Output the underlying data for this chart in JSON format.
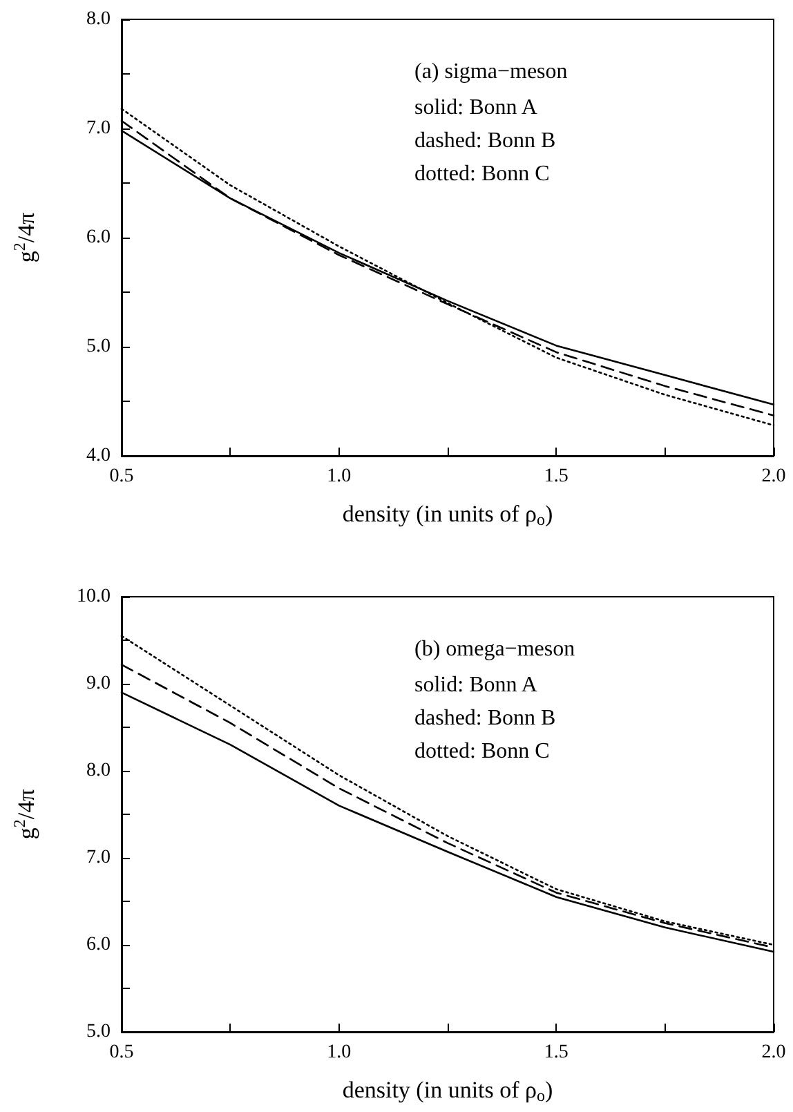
{
  "chart_data": [
    {
      "type": "line",
      "xlabel": "density (in units of ρ$_{o}$)",
      "ylabel": "g$^{2}$/4π",
      "annotations": [
        "(a) sigma−meson",
        "solid: Bonn A",
        "dashed: Bonn B",
        "dotted: Bonn C"
      ],
      "x": [
        0.5,
        0.75,
        1.0,
        1.25,
        1.5,
        1.75,
        2.0
      ],
      "series": [
        {
          "color": "#000000",
          "line_style": "solid",
          "values": [
            6.98,
            6.36,
            5.86,
            5.42,
            5.01,
            4.74,
            4.47
          ]
        },
        {
          "color": "#000000",
          "line_style": "dashed",
          "values": [
            7.07,
            6.36,
            5.84,
            5.39,
            4.95,
            4.64,
            4.37
          ]
        },
        {
          "color": "#000000",
          "line_style": "dotted",
          "values": [
            7.18,
            6.48,
            5.92,
            5.4,
            4.9,
            4.56,
            4.28
          ]
        }
      ],
      "xlim": [
        0.5,
        2.0
      ],
      "ylim": [
        4.0,
        8.0
      ],
      "xticks": [
        {
          "value": 0.5,
          "label": "0.5"
        },
        {
          "value": 0.75,
          "label": null
        },
        {
          "value": 1.0,
          "label": "1.0"
        },
        {
          "value": 1.25,
          "label": null
        },
        {
          "value": 1.5,
          "label": "1.5"
        },
        {
          "value": 1.75,
          "label": null
        },
        {
          "value": 2.0,
          "label": "2.0"
        }
      ],
      "yticks": [
        {
          "value": 4,
          "label": "4.0"
        },
        {
          "value": 4.5,
          "label": null
        },
        {
          "value": 5,
          "label": "5.0"
        },
        {
          "value": 5.5,
          "label": null
        },
        {
          "value": 6,
          "label": "6.0"
        },
        {
          "value": 6.5,
          "label": null
        },
        {
          "value": 7,
          "label": "7.0"
        },
        {
          "value": 7.5,
          "label": null
        },
        {
          "value": 8,
          "label": "8.0"
        }
      ],
      "grid": false,
      "marker": "none"
    },
    {
      "type": "line",
      "xlabel": "density (in units of ρ$_{o}$)",
      "ylabel": "g$^{2}$/4π",
      "annotations": [
        "(b) omega−meson",
        "solid: Bonn A",
        "dashed: Bonn B",
        "dotted: Bonn C"
      ],
      "x": [
        0.5,
        0.75,
        1.0,
        1.25,
        1.5,
        1.75,
        2.0
      ],
      "series": [
        {
          "color": "#000000",
          "line_style": "solid",
          "values": [
            8.9,
            8.3,
            7.6,
            7.07,
            6.55,
            6.2,
            5.92
          ]
        },
        {
          "color": "#000000",
          "line_style": "dashed",
          "values": [
            9.22,
            8.55,
            7.8,
            7.17,
            6.6,
            6.25,
            5.97
          ]
        },
        {
          "color": "#000000",
          "line_style": "dotted",
          "values": [
            9.55,
            8.75,
            7.95,
            7.25,
            6.64,
            6.27,
            6.0
          ]
        }
      ],
      "xlim": [
        0.5,
        2.0
      ],
      "ylim": [
        5.0,
        10.0
      ],
      "xticks": [
        {
          "value": 0.5,
          "label": "0.5"
        },
        {
          "value": 0.75,
          "label": null
        },
        {
          "value": 1.0,
          "label": "1.0"
        },
        {
          "value": 1.25,
          "label": null
        },
        {
          "value": 1.5,
          "label": "1.5"
        },
        {
          "value": 1.75,
          "label": null
        },
        {
          "value": 2.0,
          "label": "2.0"
        }
      ],
      "yticks": [
        {
          "value": 5,
          "label": "5.0"
        },
        {
          "value": 5.5,
          "label": null
        },
        {
          "value": 6,
          "label": "6.0"
        },
        {
          "value": 6.5,
          "label": null
        },
        {
          "value": 7,
          "label": "7.0"
        },
        {
          "value": 7.5,
          "label": null
        },
        {
          "value": 8,
          "label": "8.0"
        },
        {
          "value": 8.5,
          "label": null
        },
        {
          "value": 9,
          "label": "9.0"
        },
        {
          "value": 9.5,
          "label": null
        },
        {
          "value": 10,
          "label": "10.0"
        }
      ],
      "grid": false,
      "marker": "none"
    }
  ]
}
